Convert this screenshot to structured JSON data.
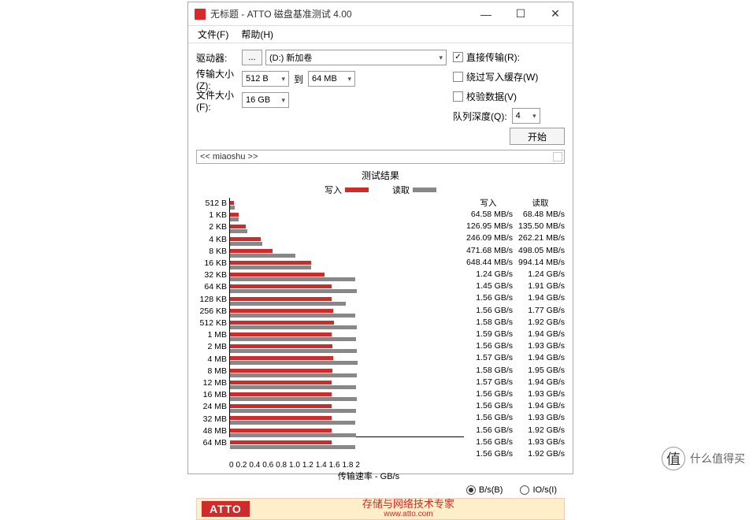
{
  "window": {
    "title": "无标题 - ATTO 磁盘基准测试 4.00"
  },
  "menu": {
    "file": "文件(F)",
    "help": "帮助(H)"
  },
  "labels": {
    "drive": "驱动器:",
    "transfer_size": "传输大小(Z):",
    "to": "到",
    "file_size": "文件大小(F):",
    "direct_io": "直接传输(R):",
    "bypass_cache": "绕过写入缓存(W)",
    "verify": "校验数据(V)",
    "queue_depth": "队列深度(Q):",
    "start": "开始",
    "results_title": "测试结果",
    "write": "写入",
    "read": "读取",
    "xaxis": "传输速率 - GB/s",
    "bps": "B/s(B)",
    "ios": "IO/s(I)",
    "browse": "...",
    "desc_value": "<< miaoshu >>"
  },
  "values": {
    "drive": "(D:) 新加卷",
    "min_size": "512 B",
    "max_size": "64 MB",
    "file_size": "16 GB",
    "queue_depth": "4",
    "direct_io_checked": true,
    "bypass_checked": false,
    "verify_checked": false,
    "unit_selected": "bps"
  },
  "footer": {
    "logo": "ATTO",
    "slogan": "存储与网络技术专家",
    "url": "www.atto.com"
  },
  "watermark": {
    "icon": "值",
    "text": "什么值得买"
  },
  "chart": {
    "max_gbps": 2.0,
    "xticks": [
      "0",
      "0.2",
      "0.4",
      "0.6",
      "0.8",
      "1.0",
      "1.2",
      "1.4",
      "1.6",
      "1.8",
      "2"
    ],
    "bar_colors": {
      "write": "#cf2b2b",
      "read": "#888888"
    },
    "rows": [
      {
        "label": "512 B",
        "w_gbps": 0.065,
        "r_gbps": 0.068,
        "w_text": "64.58 MB/s",
        "r_text": "68.48 MB/s"
      },
      {
        "label": "1 KB",
        "w_gbps": 0.127,
        "r_gbps": 0.136,
        "w_text": "126.95 MB/s",
        "r_text": "135.50 MB/s"
      },
      {
        "label": "2 KB",
        "w_gbps": 0.246,
        "r_gbps": 0.262,
        "w_text": "246.09 MB/s",
        "r_text": "262.21 MB/s"
      },
      {
        "label": "4 KB",
        "w_gbps": 0.472,
        "r_gbps": 0.498,
        "w_text": "471.68 MB/s",
        "r_text": "498.05 MB/s"
      },
      {
        "label": "8 KB",
        "w_gbps": 0.648,
        "r_gbps": 0.994,
        "w_text": "648.44 MB/s",
        "r_text": "994.14 MB/s"
      },
      {
        "label": "16 KB",
        "w_gbps": 1.24,
        "r_gbps": 1.24,
        "w_text": "1.24 GB/s",
        "r_text": "1.24 GB/s"
      },
      {
        "label": "32 KB",
        "w_gbps": 1.45,
        "r_gbps": 1.91,
        "w_text": "1.45 GB/s",
        "r_text": "1.91 GB/s"
      },
      {
        "label": "64 KB",
        "w_gbps": 1.56,
        "r_gbps": 1.94,
        "w_text": "1.56 GB/s",
        "r_text": "1.94 GB/s"
      },
      {
        "label": "128 KB",
        "w_gbps": 1.56,
        "r_gbps": 1.77,
        "w_text": "1.56 GB/s",
        "r_text": "1.77 GB/s"
      },
      {
        "label": "256 KB",
        "w_gbps": 1.58,
        "r_gbps": 1.92,
        "w_text": "1.58 GB/s",
        "r_text": "1.92 GB/s"
      },
      {
        "label": "512 KB",
        "w_gbps": 1.59,
        "r_gbps": 1.94,
        "w_text": "1.59 GB/s",
        "r_text": "1.94 GB/s"
      },
      {
        "label": "1 MB",
        "w_gbps": 1.56,
        "r_gbps": 1.93,
        "w_text": "1.56 GB/s",
        "r_text": "1.93 GB/s"
      },
      {
        "label": "2 MB",
        "w_gbps": 1.57,
        "r_gbps": 1.94,
        "w_text": "1.57 GB/s",
        "r_text": "1.94 GB/s"
      },
      {
        "label": "4 MB",
        "w_gbps": 1.58,
        "r_gbps": 1.95,
        "w_text": "1.58 GB/s",
        "r_text": "1.95 GB/s"
      },
      {
        "label": "8 MB",
        "w_gbps": 1.57,
        "r_gbps": 1.94,
        "w_text": "1.57 GB/s",
        "r_text": "1.94 GB/s"
      },
      {
        "label": "12 MB",
        "w_gbps": 1.56,
        "r_gbps": 1.93,
        "w_text": "1.56 GB/s",
        "r_text": "1.93 GB/s"
      },
      {
        "label": "16 MB",
        "w_gbps": 1.56,
        "r_gbps": 1.94,
        "w_text": "1.56 GB/s",
        "r_text": "1.94 GB/s"
      },
      {
        "label": "24 MB",
        "w_gbps": 1.56,
        "r_gbps": 1.93,
        "w_text": "1.56 GB/s",
        "r_text": "1.93 GB/s"
      },
      {
        "label": "32 MB",
        "w_gbps": 1.56,
        "r_gbps": 1.92,
        "w_text": "1.56 GB/s",
        "r_text": "1.92 GB/s"
      },
      {
        "label": "48 MB",
        "w_gbps": 1.56,
        "r_gbps": 1.93,
        "w_text": "1.56 GB/s",
        "r_text": "1.93 GB/s"
      },
      {
        "label": "64 MB",
        "w_gbps": 1.56,
        "r_gbps": 1.92,
        "w_text": "1.56 GB/s",
        "r_text": "1.92 GB/s"
      }
    ]
  }
}
